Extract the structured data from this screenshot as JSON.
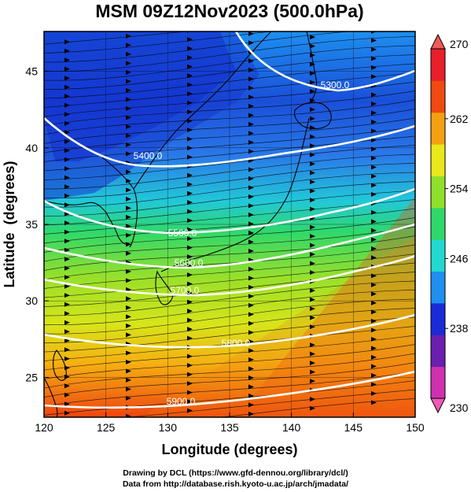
{
  "title": "MSM 09Z12Nov2023 (500.0hPa)",
  "credits": {
    "line1": "Drawing by DCL (https://www.gfd-dennou.org/library/dcl/)",
    "line2": "Data from http://database.rish.kyoto-u.ac.jp/arch/jmadata/"
  },
  "colorbar": {
    "ticks": [
      "230",
      "238",
      "246",
      "254",
      "262",
      "270"
    ],
    "min": 230,
    "max": 270,
    "colors": [
      "#d030b0",
      "#6a1fb0",
      "#1a2bd8",
      "#1f8ff0",
      "#22d8d0",
      "#2fd86a",
      "#8fe02a",
      "#e8e81a",
      "#f5a010",
      "#f04a10",
      "#e8202a"
    ]
  },
  "chart_data": {
    "type": "heatmap",
    "title": "MSM 09Z12Nov2023 (500.0hPa)",
    "xlabel": "Longitude (degrees)",
    "ylabel": "Latitude  (degrees)",
    "xlim": [
      120,
      150
    ],
    "ylim": [
      22.4,
      47.6
    ],
    "xticks": [
      120,
      125,
      130,
      135,
      140,
      145,
      150
    ],
    "yticks": [
      25,
      30,
      35,
      40,
      45
    ],
    "field": "temperature (K), shaded",
    "color_range": [
      230,
      270
    ],
    "contour_labels": [
      "5300.0",
      "5400.0",
      "5500.0",
      "5600.0",
      "5700.0",
      "5800.0",
      "5900.0"
    ],
    "overlays": [
      "wind streamlines",
      "coastlines",
      "geopotential height contours (white)"
    ],
    "grid": true
  }
}
